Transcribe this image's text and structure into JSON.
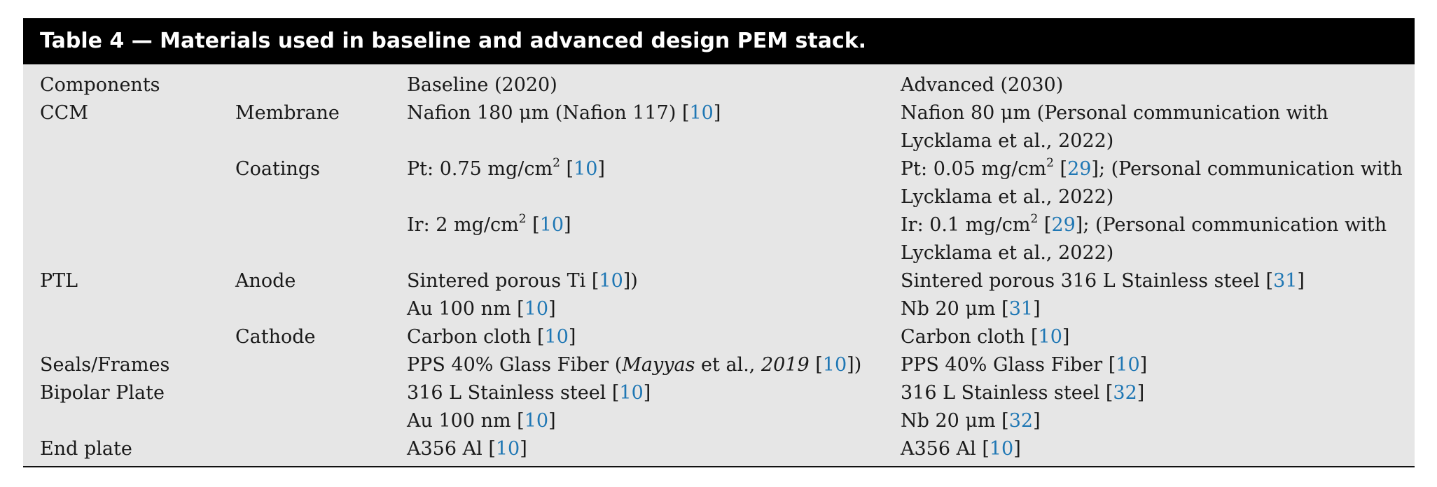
{
  "caption": "Table 4 — Materials used in baseline and advanced design PEM stack.",
  "header": {
    "components": "Components",
    "baseline": "Baseline (2020)",
    "advanced": "Advanced (2030)"
  },
  "rows": [
    {
      "component": "CCM",
      "subcomponent": "Membrane",
      "baseline": {
        "pre": "Nafion 180 μm (Nafion 117) [",
        "ref": "10",
        "post": "]"
      },
      "advanced": {
        "pre": "Nafion 80 μm (Personal communication with"
      }
    },
    {
      "advanced": {
        "pre": "Lycklama et al., 2022)"
      }
    },
    {
      "subcomponent": "Coatings",
      "baseline": {
        "pre": "Pt: 0.75 mg/cm",
        "sup": "2",
        "mid": " [",
        "ref": "10",
        "post": "]"
      },
      "advanced": {
        "pre": "Pt: 0.05 mg/cm",
        "sup": "2",
        "mid": " [",
        "ref": "29",
        "post": "]; (Personal communication with"
      }
    },
    {
      "advanced": {
        "pre": "Lycklama et al., 2022)"
      }
    },
    {
      "baseline": {
        "pre": "Ir: 2 mg/cm",
        "sup": "2",
        "mid": " [",
        "ref": "10",
        "post": "]"
      },
      "advanced": {
        "pre": "Ir: 0.1 mg/cm",
        "sup": "2",
        "mid": " [",
        "ref": "29",
        "post": "]; (Personal communication with"
      }
    },
    {
      "advanced": {
        "pre": "Lycklama et al., 2022)"
      }
    },
    {
      "component": "PTL",
      "subcomponent": "Anode",
      "baseline": {
        "pre": "Sintered porous Ti [",
        "ref": "10",
        "post": "])"
      },
      "advanced": {
        "pre": "Sintered porous 316 L Stainless steel [",
        "ref": "31",
        "post": "]"
      }
    },
    {
      "baseline": {
        "pre": "Au 100 nm [",
        "ref": "10",
        "post": "]"
      },
      "advanced": {
        "pre": "Nb 20 μm [",
        "ref": "31",
        "post": "]"
      }
    },
    {
      "subcomponent": "Cathode",
      "baseline": {
        "pre": "Carbon cloth [",
        "ref": "10",
        "post": "]"
      },
      "advanced": {
        "pre": "Carbon cloth [",
        "ref": "10",
        "post": "]"
      }
    },
    {
      "component": "Seals/Frames",
      "baseline": {
        "pre": "PPS 40% Glass Fiber (",
        "em": "Mayyas",
        "mid": " et al., ",
        "em2": "2019",
        "mid2": " [",
        "ref": "10",
        "post": "])"
      },
      "advanced": {
        "pre": "PPS 40% Glass Fiber [",
        "ref": "10",
        "post": "]"
      }
    },
    {
      "component": "Bipolar Plate",
      "baseline": {
        "pre": "316 L Stainless steel [",
        "ref": "10",
        "post": "]"
      },
      "advanced": {
        "pre": "316 L Stainless steel [",
        "ref": "32",
        "post": "]"
      }
    },
    {
      "baseline": {
        "pre": "Au 100 nm [",
        "ref": "10",
        "post": "]"
      },
      "advanced": {
        "pre": "Nb 20 μm [",
        "ref": "32",
        "post": "]"
      }
    },
    {
      "component": "End plate",
      "baseline": {
        "pre": "A356 Al [",
        "ref": "10",
        "post": "]"
      },
      "advanced": {
        "pre": "A356 Al [",
        "ref": "10",
        "post": "]"
      }
    }
  ],
  "colors": {
    "caption_bg": "#000000",
    "table_bg": "#e6e6e6",
    "reference_link": "#1f77b4"
  }
}
